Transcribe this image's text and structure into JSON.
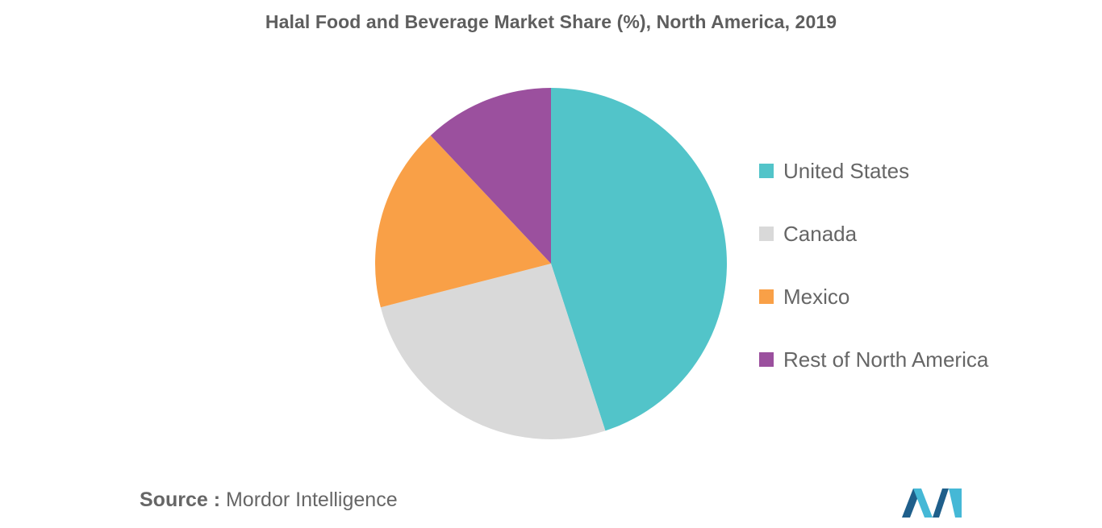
{
  "title": "Halal Food and Beverage Market Share (%), North America, 2019",
  "chart_data": {
    "type": "pie",
    "title": "Halal Food and Beverage Market Share (%), North America, 2019",
    "start_angle_deg": 0,
    "direction": "clockwise",
    "slices": [
      {
        "label": "United States",
        "value": 45,
        "color": "#52c4c9"
      },
      {
        "label": "Canada",
        "value": 26,
        "color": "#d9d9d9"
      },
      {
        "label": "Mexico",
        "value": 17,
        "color": "#f9a047"
      },
      {
        "label": "Rest of North America",
        "value": 12,
        "color": "#9b509e"
      }
    ],
    "legend_position": "right"
  },
  "source": {
    "prefix": "Source :",
    "text": "Mordor Intelligence"
  },
  "logo": {
    "icon": "mordor-intelligence-logo-icon",
    "colors": [
      "#1f5f8b",
      "#45b8d6"
    ]
  }
}
